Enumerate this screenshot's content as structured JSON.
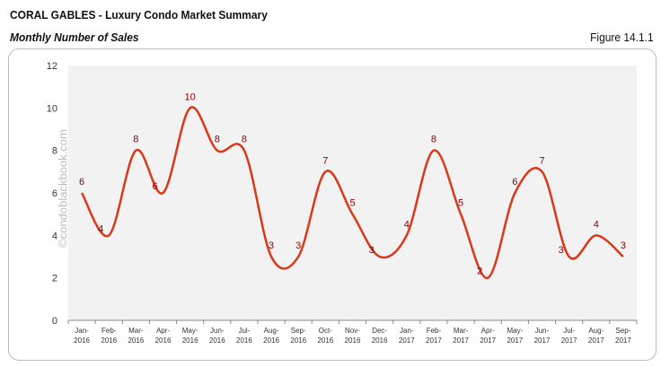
{
  "header": {
    "title": "CORAL GABLES - Luxury Condo Market Summary",
    "subtitle": "Monthly Number of Sales",
    "figure": "Figure 14.1.1"
  },
  "watermark": "©condoblackbook.com",
  "chart_data": {
    "type": "line",
    "title": "",
    "xlabel": "",
    "ylabel": "",
    "ylim": [
      0,
      12
    ],
    "yticks": [
      0,
      2,
      4,
      6,
      8,
      10,
      12
    ],
    "grid": false,
    "smooth": true,
    "line_color": "#d9391a",
    "label_color": "#8b0000",
    "plot_bg": "#f2f2f2",
    "categories": [
      "Jan-2016",
      "Feb-2016",
      "Mar-2016",
      "Apr-2016",
      "May-2016",
      "Jun-2016",
      "Jul-2016",
      "Aug-2016",
      "Sep-2016",
      "Oct-2016",
      "Nov-2016",
      "Dec-2016",
      "Jan-2017",
      "Feb-2017",
      "Mar-2017",
      "Apr-2017",
      "May-2017",
      "Jun-2017",
      "Jul-2017",
      "Aug-2017",
      "Sep-2017"
    ],
    "values": [
      6,
      4,
      8,
      6,
      10,
      8,
      8,
      3,
      3,
      7,
      5,
      3,
      4,
      8,
      5,
      2,
      6,
      7,
      3,
      4,
      3
    ]
  }
}
